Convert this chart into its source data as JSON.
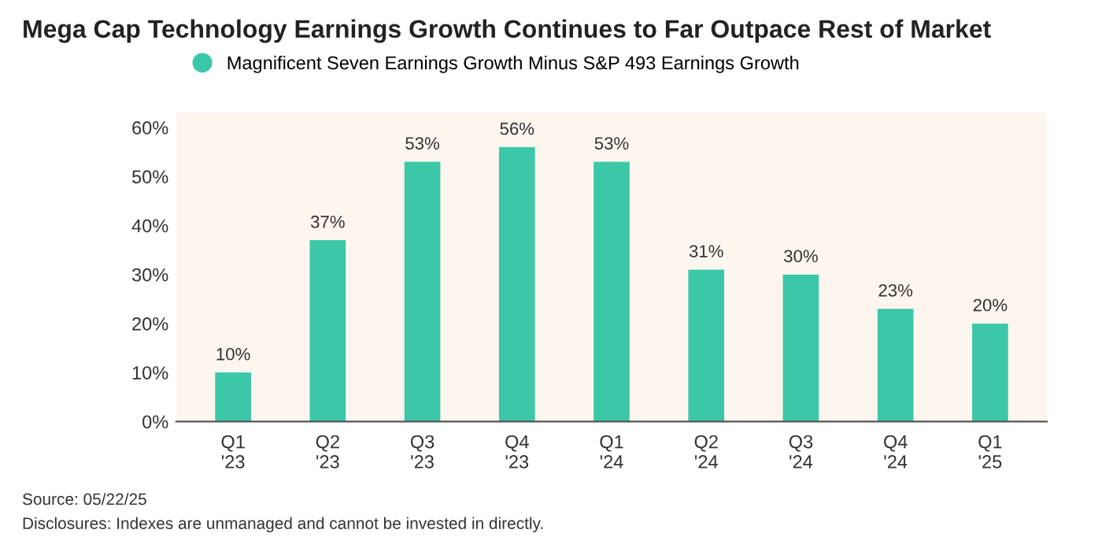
{
  "chart_data": {
    "type": "bar",
    "title": "Mega Cap Technology Earnings Growth Continues to Far Outpace Rest of Market",
    "categories": [
      "Q1\n'23",
      "Q2\n'23",
      "Q3\n'23",
      "Q4\n'23",
      "Q1\n'24",
      "Q2\n'24",
      "Q3\n'24",
      "Q4\n'24",
      "Q1\n'25"
    ],
    "series": [
      {
        "name": "Magnificent Seven Earnings Growth Minus S&P 493 Earnings Growth",
        "color": "#3cc8a8",
        "values": [
          10,
          37,
          53,
          56,
          53,
          31,
          30,
          23,
          20
        ],
        "value_labels": [
          "10%",
          "37%",
          "53%",
          "56%",
          "53%",
          "31%",
          "30%",
          "23%",
          "20%"
        ]
      }
    ],
    "ylim": [
      0,
      63
    ],
    "yticks": [
      {
        "value": 0,
        "label": "0%"
      },
      {
        "value": 10,
        "label": "10%"
      },
      {
        "value": 20,
        "label": "20%"
      },
      {
        "value": 30,
        "label": "30%"
      },
      {
        "value": 40,
        "label": "40%"
      },
      {
        "value": 50,
        "label": "50%"
      },
      {
        "value": 60,
        "label": "60%"
      }
    ],
    "grid": false,
    "legend": "top",
    "annotations": [
      "Source: 05/22/25",
      "Disclosures: Indexes are unmanaged and cannot be invested in directly."
    ]
  }
}
